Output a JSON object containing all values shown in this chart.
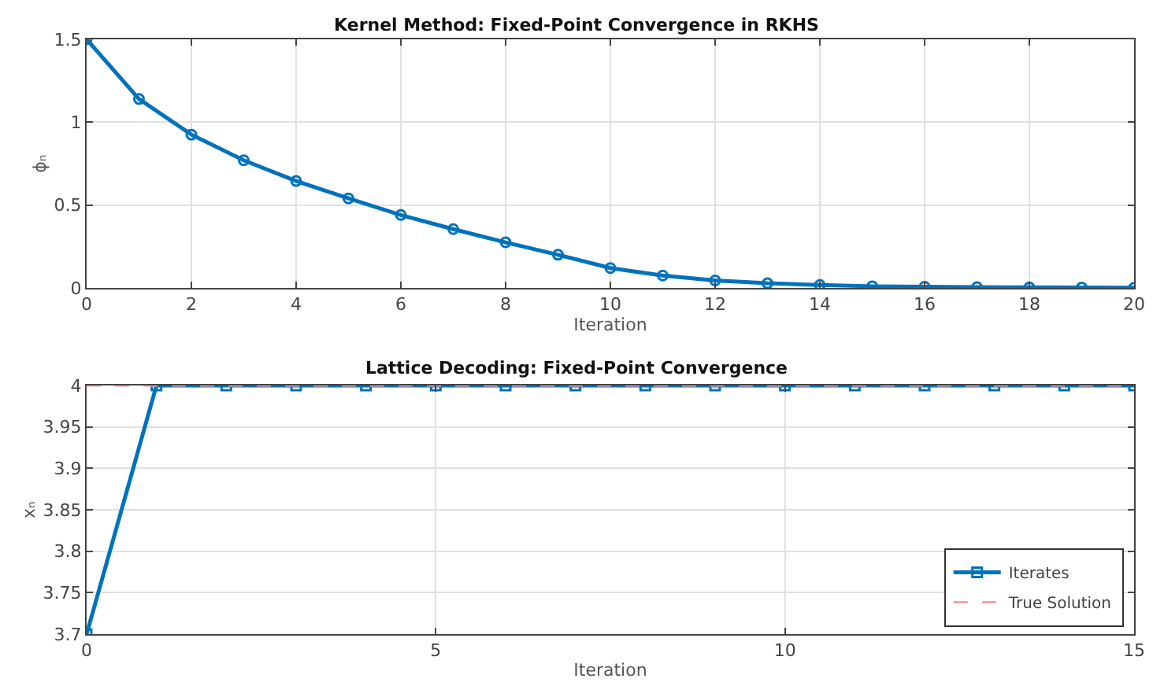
{
  "chart_data": [
    {
      "type": "line",
      "title": "Kernel Method: Fixed-Point Convergence in RKHS",
      "xlabel": "Iteration",
      "ylabel": "ϕₙ",
      "x": [
        0,
        1,
        2,
        3,
        4,
        5,
        6,
        7,
        8,
        9,
        10,
        11,
        12,
        13,
        14,
        15,
        16,
        17,
        18,
        19,
        20
      ],
      "series": [
        {
          "color": "#0072bd",
          "values": [
            1.5,
            1.14,
            0.925,
            0.77,
            0.645,
            0.54,
            0.44,
            0.355,
            0.275,
            0.2,
            0.12,
            0.075,
            0.045,
            0.028,
            0.018,
            0.01,
            0.007,
            0.005,
            0.003,
            0.002,
            0.001
          ]
        }
      ],
      "xlim": [
        0,
        20
      ],
      "xticks": [
        0,
        2,
        4,
        6,
        8,
        10,
        12,
        14,
        16,
        18,
        20
      ],
      "ylim": [
        0,
        1.5
      ],
      "yticks": [
        0,
        0.5,
        1,
        1.5
      ],
      "grid": true,
      "marker": "circle",
      "legend": false
    },
    {
      "type": "line",
      "title": "Lattice Decoding: Fixed-Point Convergence",
      "xlabel": "Iteration",
      "ylabel": "xₙ",
      "x": [
        0,
        1,
        2,
        3,
        4,
        5,
        6,
        7,
        8,
        9,
        10,
        11,
        12,
        13,
        14,
        15
      ],
      "series": [
        {
          "name": "Iterates",
          "color": "#0072bd",
          "marker": "square",
          "line_style": "solid",
          "values": [
            3.7,
            4,
            4,
            4,
            4,
            4,
            4,
            4,
            4,
            4,
            4,
            4,
            4,
            4,
            4,
            4
          ]
        },
        {
          "name": "True Solution",
          "color": "#f4a3a3",
          "marker": "none",
          "line_style": "dashed",
          "values": [
            4,
            4,
            4,
            4,
            4,
            4,
            4,
            4,
            4,
            4,
            4,
            4,
            4,
            4,
            4,
            4
          ]
        }
      ],
      "xlim": [
        0,
        15
      ],
      "xticks": [
        0,
        5,
        10,
        15
      ],
      "ylim": [
        3.7,
        4
      ],
      "yticks": [
        3.7,
        3.75,
        3.8,
        3.85,
        3.9,
        3.95,
        4
      ],
      "grid": true,
      "legend": "bottom right"
    }
  ]
}
